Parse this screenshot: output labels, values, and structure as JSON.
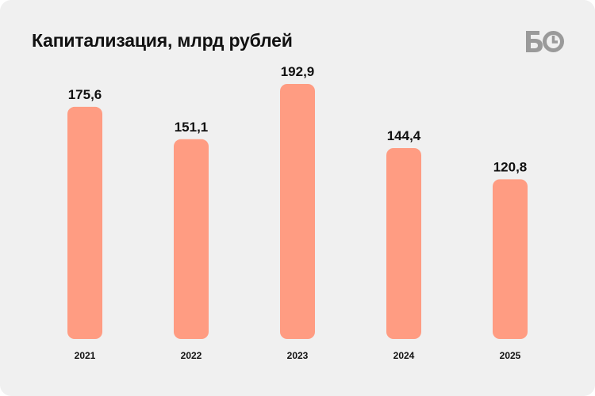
{
  "header": {
    "title": "Капитализация, млрд рублей",
    "logo_text": "БО"
  },
  "colors": {
    "bar": "#ff9c82",
    "background": "#f0f0f0",
    "logo": "#9a9a9a",
    "text": "#111111"
  },
  "chart_data": {
    "type": "bar",
    "title": "Капитализация, млрд рублей",
    "xlabel": "",
    "ylabel": "",
    "categories": [
      "2021",
      "2022",
      "2023",
      "2024",
      "2025"
    ],
    "values": [
      175.6,
      151.1,
      192.9,
      144.4,
      120.8
    ],
    "value_labels": [
      "175,6",
      "151,1",
      "192,9",
      "144,4",
      "120,8"
    ],
    "ylim": [
      0,
      192.9
    ],
    "grid": false,
    "legend": "none"
  }
}
